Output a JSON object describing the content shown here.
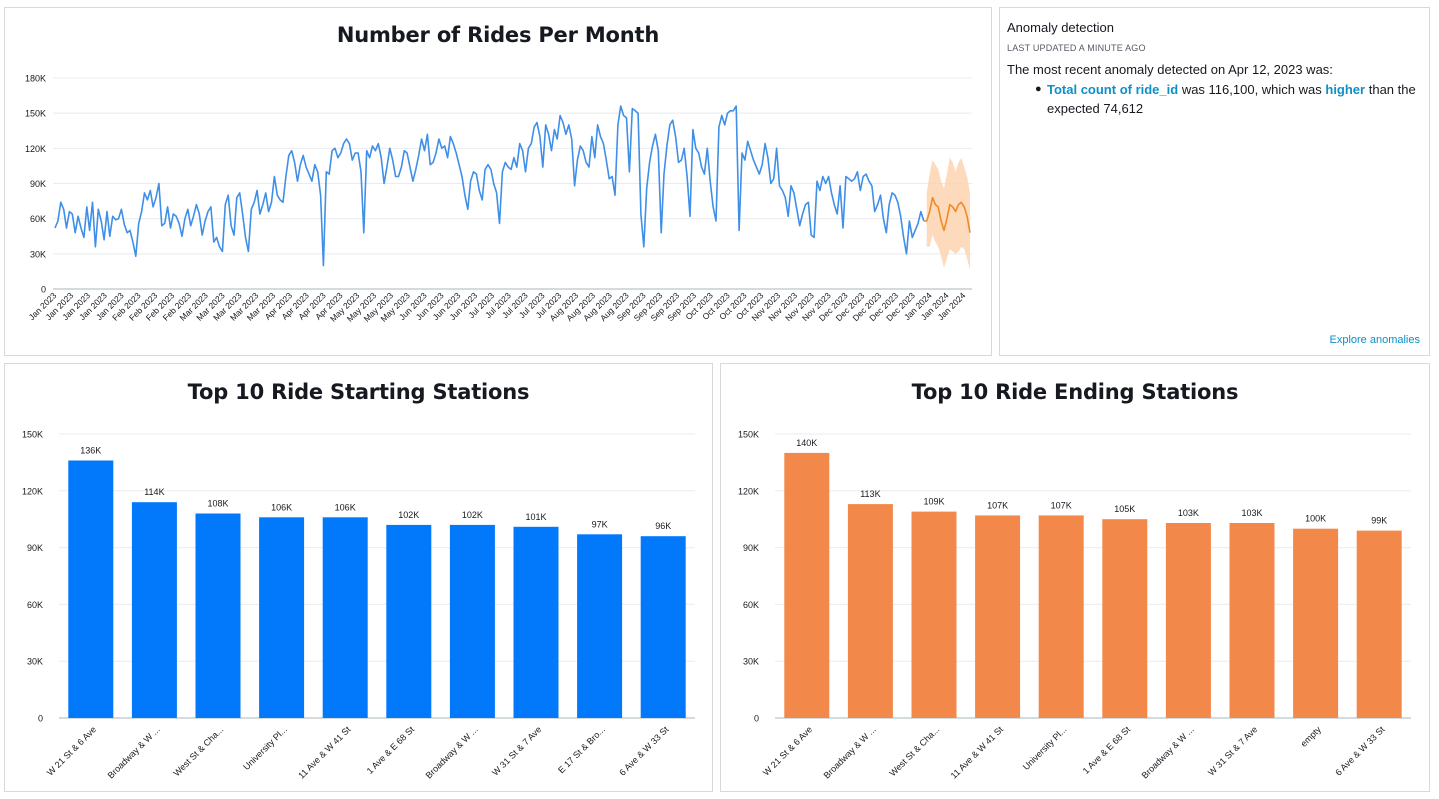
{
  "line_chart": {
    "title": "Number of Rides Per Month",
    "y_ticks": [
      "180K",
      "150K",
      "120K",
      "90K",
      "60K",
      "30K",
      "0"
    ],
    "x_labels": [
      "Jan 2023",
      "Jan 2023",
      "Jan 2023",
      "Jan 2023",
      "Jan 2023",
      "Feb 2023",
      "Feb 2023",
      "Feb 2023",
      "Feb 2023",
      "Mar 2023",
      "Mar 2023",
      "Mar 2023",
      "Mar 2023",
      "Mar 2023",
      "Apr 2023",
      "Apr 2023",
      "Apr 2023",
      "Apr 2023",
      "May 2023",
      "May 2023",
      "May 2023",
      "May 2023",
      "Jun 2023",
      "Jun 2023",
      "Jun 2023",
      "Jun 2023",
      "Jul 2023",
      "Jul 2023",
      "Jul 2023",
      "Jul 2023",
      "Jul 2023",
      "Aug 2023",
      "Aug 2023",
      "Aug 2023",
      "Aug 2023",
      "Sep 2023",
      "Sep 2023",
      "Sep 2023",
      "Sep 2023",
      "Oct 2023",
      "Oct 2023",
      "Oct 2023",
      "Oct 2023",
      "Nov 2023",
      "Nov 2023",
      "Nov 2023",
      "Nov 2023",
      "Dec 2023",
      "Dec 2023",
      "Dec 2023",
      "Dec 2023",
      "Dec 2023",
      "Jan 2024",
      "Jan 2024",
      "Jan 2024"
    ]
  },
  "anomaly": {
    "title": "Anomaly detection",
    "updated": "LAST UPDATED A MINUTE AGO",
    "intro": "The most recent anomaly detected on Apr 12, 2023 was:",
    "metric": "Total count of ride_id",
    "mid": " was 116,100, which was ",
    "direction": "higher",
    "tail": " than the expected 74,612",
    "explore_link": "Explore anomalies"
  },
  "start_chart": {
    "title": "Top 10 Ride Starting Stations"
  },
  "end_chart": {
    "title": "Top 10 Ride Ending Stations"
  },
  "chart_data": [
    {
      "type": "line",
      "title": "Number of Rides Per Month",
      "ylim": [
        0,
        180000
      ],
      "grid": true,
      "colors": {
        "actual": "#3f8fe8",
        "forecast": "#f08a24",
        "forecast_band": "#fdd3b0"
      },
      "series": [
        {
          "values": [
            52000,
            58000,
            74000,
            68000,
            52000,
            66000,
            64000,
            48000,
            62000,
            52000,
            44000,
            70000,
            50000,
            74000,
            36000,
            68000,
            58000,
            42000,
            66000,
            45000,
            62000,
            59000,
            60000,
            68000,
            55000,
            48000,
            50000,
            40000,
            28000,
            56000,
            66000,
            82000,
            76000,
            84000,
            70000,
            78000,
            90000,
            54000,
            56000,
            70000,
            52000,
            64000,
            62000,
            56000,
            45000,
            60000,
            68000,
            54000,
            62000,
            72000,
            64000,
            46000,
            58000,
            66000,
            70000,
            40000,
            44000,
            36000,
            32000,
            72000,
            80000,
            54000,
            46000,
            78000,
            82000,
            64000,
            44000,
            32000,
            68000,
            74000,
            84000,
            64000,
            72000,
            82000,
            66000,
            74000,
            96000,
            80000,
            76000,
            74000,
            96000,
            114000,
            118000,
            108000,
            92000,
            106000,
            114000,
            104000,
            98000,
            92000,
            106000,
            100000,
            80000,
            20000,
            100000,
            98000,
            118000,
            120000,
            112000,
            116000,
            124000,
            128000,
            124000,
            110000,
            116000,
            116000,
            100000,
            48000,
            118000,
            112000,
            122000,
            118000,
            124000,
            112000,
            90000,
            104000,
            120000,
            110000,
            96000,
            96000,
            104000,
            118000,
            116000,
            104000,
            92000,
            102000,
            114000,
            128000,
            118000,
            132000,
            106000,
            108000,
            116000,
            128000,
            120000,
            122000,
            112000,
            130000,
            124000,
            116000,
            106000,
            96000,
            80000,
            68000,
            92000,
            100000,
            98000,
            84000,
            76000,
            102000,
            106000,
            102000,
            90000,
            82000,
            56000,
            100000,
            108000,
            104000,
            102000,
            112000,
            104000,
            124000,
            118000,
            100000,
            120000,
            124000,
            138000,
            142000,
            130000,
            104000,
            140000,
            132000,
            118000,
            136000,
            128000,
            148000,
            142000,
            132000,
            140000,
            128000,
            88000,
            110000,
            122000,
            118000,
            108000,
            104000,
            130000,
            112000,
            140000,
            130000,
            124000,
            110000,
            94000,
            96000,
            80000,
            140000,
            156000,
            148000,
            146000,
            100000,
            154000,
            152000,
            150000,
            64000,
            36000,
            86000,
            108000,
            122000,
            132000,
            118000,
            48000,
            98000,
            122000,
            140000,
            144000,
            130000,
            108000,
            110000,
            120000,
            96000,
            62000,
            136000,
            120000,
            116000,
            104000,
            98000,
            120000,
            92000,
            70000,
            58000,
            138000,
            148000,
            140000,
            150000,
            152000,
            152000,
            156000,
            50000,
            116000,
            110000,
            126000,
            118000,
            110000,
            104000,
            98000,
            106000,
            124000,
            112000,
            90000,
            94000,
            120000,
            88000,
            84000,
            78000,
            62000,
            88000,
            82000,
            68000,
            54000,
            64000,
            72000,
            74000,
            46000,
            44000,
            92000,
            84000,
            96000,
            90000,
            96000,
            82000,
            72000,
            64000,
            88000,
            52000,
            96000,
            94000,
            92000,
            94000,
            100000,
            84000,
            96000,
            98000,
            92000,
            88000,
            66000,
            72000,
            80000,
            60000,
            48000,
            72000,
            82000,
            80000,
            74000,
            62000,
            44000,
            30000,
            58000,
            44000,
            50000,
            56000,
            66000,
            58000
          ]
        },
        {
          "name": "forecast",
          "values": [
            58000,
            66000,
            78000,
            72000,
            70000,
            58000,
            50000,
            60000,
            72000,
            70000,
            66000,
            72000,
            74000,
            70000,
            62000,
            48000
          ],
          "upper": [
            82000,
            98000,
            110000,
            106000,
            102000,
            92000,
            86000,
            98000,
            112000,
            108000,
            100000,
            108000,
            112000,
            104000,
            96000,
            82000
          ],
          "lower": [
            36000,
            36000,
            46000,
            40000,
            36000,
            28000,
            18000,
            26000,
            34000,
            32000,
            30000,
            32000,
            36000,
            34000,
            26000,
            16000
          ]
        }
      ]
    },
    {
      "type": "bar",
      "title": "Top 10 Ride Starting Stations",
      "ylim": [
        0,
        150000
      ],
      "y_ticks": [
        "150K",
        "120K",
        "90K",
        "60K",
        "30K",
        "0"
      ],
      "grid": true,
      "color": "#0278fa",
      "categories": [
        "W 21 St & 6 Ave",
        "Broadway & W ...",
        "West St & Cha...",
        "University Pl...",
        "11 Ave & W 41 St",
        "1 Ave & E 68 St",
        "Broadway & W ...",
        "W 31 St & 7 Ave",
        "E 17 St & Bro...",
        "6 Ave & W 33 St"
      ],
      "values": [
        136000,
        114000,
        108000,
        106000,
        106000,
        102000,
        102000,
        101000,
        97000,
        96000
      ],
      "labels": [
        "136K",
        "114K",
        "108K",
        "106K",
        "106K",
        "102K",
        "102K",
        "101K",
        "97K",
        "96K"
      ]
    },
    {
      "type": "bar",
      "title": "Top 10 Ride Ending Stations",
      "ylim": [
        0,
        150000
      ],
      "y_ticks": [
        "150K",
        "120K",
        "90K",
        "60K",
        "30K",
        "0"
      ],
      "grid": true,
      "color": "#f2894a",
      "categories": [
        "W 21 St & 6 Ave",
        "Broadway & W ...",
        "West St & Cha...",
        "11 Ave & W 41 St",
        "University Pl...",
        "1 Ave & E 68 St",
        "Broadway & W ...",
        "W 31 St & 7 Ave",
        "empty",
        "6 Ave & W 33 St"
      ],
      "values": [
        140000,
        113000,
        109000,
        107000,
        107000,
        105000,
        103000,
        103000,
        100000,
        99000
      ],
      "labels": [
        "140K",
        "113K",
        "109K",
        "107K",
        "107K",
        "105K",
        "103K",
        "103K",
        "100K",
        "99K"
      ]
    }
  ]
}
